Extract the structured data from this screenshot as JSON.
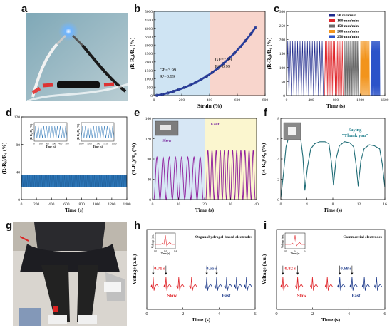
{
  "panels": {
    "a": {
      "label": "a"
    },
    "b": {
      "label": "b",
      "chart_data": {
        "type": "scatter",
        "xlabel": "Strain (%)",
        "ylabel": "(R-R₀)/R₀ (%)",
        "xlim": [
          0,
          800
        ],
        "ylim": [
          0,
          5000
        ],
        "xticks": [
          "0",
          "200",
          "400",
          "600",
          "800"
        ],
        "yticks": [
          "0",
          "500",
          "1000",
          "1500",
          "2000",
          "2500",
          "3000",
          "3500",
          "4000",
          "4500",
          "5000"
        ],
        "regions": [
          {
            "x0": 0,
            "x1": 400,
            "color": "#cfe4f3"
          },
          {
            "x0": 400,
            "x1": 800,
            "color": "#f8d5cc"
          }
        ],
        "annotations": [
          {
            "line1": "GF=3.99",
            "line2": "R²=0.99"
          },
          {
            "line1": "GF=7.79",
            "line2": "R²=0.99"
          }
        ],
        "points": [
          [
            20,
            10
          ],
          [
            60,
            70
          ],
          [
            100,
            150
          ],
          [
            140,
            250
          ],
          [
            180,
            360
          ],
          [
            220,
            480
          ],
          [
            260,
            620
          ],
          [
            300,
            780
          ],
          [
            340,
            960
          ],
          [
            380,
            1150
          ],
          [
            420,
            1370
          ],
          [
            460,
            1620
          ],
          [
            500,
            1900
          ],
          [
            540,
            2200
          ],
          [
            580,
            2520
          ],
          [
            620,
            2880
          ],
          [
            660,
            3260
          ],
          [
            700,
            3680
          ],
          [
            730,
            4050
          ]
        ]
      }
    },
    "c": {
      "label": "c",
      "chart_data": {
        "type": "line",
        "xlabel": "Time (s)",
        "ylabel": "(R-R₀)/R₀ (%)",
        "xlim": [
          0,
          1600
        ],
        "ylim": [
          0,
          300
        ],
        "xticks": [
          "0",
          "400",
          "800",
          "1200",
          "1600"
        ],
        "yticks": [
          "0",
          "50",
          "100",
          "150",
          "200",
          "250",
          "300"
        ],
        "series": [
          {
            "name": "50 mm/min",
            "color": "#1f2a8c",
            "x0": 0,
            "x1": 600,
            "cycles": 15
          },
          {
            "name": "100 mm/min",
            "color": "#e0262b",
            "x0": 620,
            "x1": 920,
            "cycles": 12
          },
          {
            "name": "150 mm/min",
            "color": "#6b6b6b",
            "x0": 940,
            "x1": 1180,
            "cycles": 14
          },
          {
            "name": "200 mm/min",
            "color": "#f2941c",
            "x0": 1200,
            "x1": 1350,
            "cycles": 12
          },
          {
            "name": "250 mm/min",
            "color": "#2b53c9",
            "x0": 1370,
            "x1": 1520,
            "cycles": 15
          }
        ],
        "peak": 195
      }
    },
    "d": {
      "label": "d",
      "chart_data": {
        "type": "line",
        "xlabel": "Time (s)",
        "ylabel": "(R-R₀)/R₀ (%)",
        "xlim": [
          0,
          1400
        ],
        "ylim": [
          0,
          120
        ],
        "xticks": [
          "0",
          "200",
          "400",
          "600",
          "800",
          "1000",
          "1200",
          "1400"
        ],
        "yticks": [
          "0",
          "40",
          "80",
          "120"
        ],
        "band": [
          18,
          36
        ],
        "color": "#2e77b8",
        "insets": [
          {
            "ylabel": "(R-R₀)/R₀ (%)",
            "xlabel": "Time (s)",
            "ticks": [
              "0",
              "100",
              "200",
              "300",
              "400",
              "500"
            ]
          },
          {
            "ylabel": "(R-R₀)/R₀ (%)",
            "xlabel": "Time (s)",
            "ticks": [
              "1000",
              "1050",
              "1100",
              "1150",
              "1200"
            ]
          }
        ]
      }
    },
    "e": {
      "label": "e",
      "chart_data": {
        "type": "line",
        "xlabel": "Time (s)",
        "ylabel": "(R-R₀)/R₀ (%)",
        "xlim": [
          0,
          40
        ],
        "ylim": [
          0,
          160
        ],
        "xticks": [
          "0",
          "10",
          "20",
          "30",
          "40"
        ],
        "yticks": [
          "0",
          "40",
          "80",
          "120",
          "160"
        ],
        "color": "#8e1b9c",
        "regions": [
          {
            "x0": 0,
            "x1": 20,
            "color": "#d7e7f5",
            "label": "Slow"
          },
          {
            "x0": 20,
            "x1": 40,
            "color": "#fbf6cf",
            "label": "Fast"
          }
        ],
        "slow": {
          "x0": 0.5,
          "x1": 19.5,
          "cycles": 8,
          "peak": 84
        },
        "fast": {
          "x0": 20.5,
          "x1": 39.5,
          "cycles": 12,
          "peak": 97
        }
      }
    },
    "f": {
      "label": "f",
      "chart_data": {
        "type": "line",
        "xlabel": "Time (s)",
        "ylabel": "(R-R₀)/R₀ (%)",
        "xlim": [
          0,
          16
        ],
        "ylim": [
          0,
          8
        ],
        "xticks": [
          "0",
          "4",
          "8",
          "12",
          "16"
        ],
        "yticks": [
          "0",
          "2",
          "4",
          "6",
          "8"
        ],
        "color": "#1f6c76",
        "annotation": [
          "Saying",
          "\"Thank you\""
        ],
        "points": [
          [
            0,
            0.2
          ],
          [
            0.4,
            2.5
          ],
          [
            0.8,
            5.2
          ],
          [
            1.2,
            6.1
          ],
          [
            1.8,
            6.5
          ],
          [
            2.4,
            6.6
          ],
          [
            3.0,
            6.3
          ],
          [
            3.4,
            4.2
          ],
          [
            3.7,
            0.9
          ],
          [
            4.1,
            3.2
          ],
          [
            4.6,
            5.0
          ],
          [
            5.2,
            5.5
          ],
          [
            6.0,
            5.7
          ],
          [
            6.8,
            5.7
          ],
          [
            7.4,
            5.5
          ],
          [
            7.8,
            3.6
          ],
          [
            8.1,
            1.4
          ],
          [
            8.5,
            4.0
          ],
          [
            9.0,
            5.3
          ],
          [
            9.8,
            5.7
          ],
          [
            10.6,
            5.6
          ],
          [
            11.2,
            5.2
          ],
          [
            11.6,
            3.3
          ],
          [
            11.9,
            1.3
          ],
          [
            12.3,
            3.8
          ],
          [
            12.8,
            5.0
          ],
          [
            13.6,
            5.4
          ],
          [
            14.4,
            5.3
          ],
          [
            15.2,
            5.0
          ],
          [
            15.6,
            3.5
          ],
          [
            16,
            1.2
          ]
        ]
      }
    },
    "g": {
      "label": "g"
    },
    "h": {
      "label": "h",
      "chart_data": {
        "type": "line",
        "xlabel": "Time (s)",
        "ylabel": "Voltage (a.u.)",
        "xlim": [
          0,
          6
        ],
        "xticks": [
          "0",
          "2",
          "4",
          "6"
        ],
        "title": "Organohydrogel-based electrodes",
        "slow_label": "Slow",
        "fast_label": "Fast",
        "slow_interval": "0.71 s",
        "fast_interval": "0.55 s",
        "slow_color": "#e0262b",
        "fast_color": "#1f3c8c",
        "split": 3.2,
        "slow_beats": [
          0.35,
          1.06,
          1.77,
          2.48
        ],
        "fast_beats": [
          3.32,
          3.87,
          4.42,
          4.97,
          5.52
        ],
        "inset": {
          "xlabel": "Time (s)",
          "ylabel": "Voltage (a.u.)",
          "ticks": [
            "0.0",
            "0.2",
            "0.4"
          ]
        }
      }
    },
    "i": {
      "label": "i",
      "chart_data": {
        "type": "line",
        "xlabel": "Time (s)",
        "ylabel": "Voltage (a.u.)",
        "xlim": [
          0,
          6
        ],
        "xticks": [
          "0",
          "2",
          "4",
          "6"
        ],
        "title": "Commercial electrodes",
        "slow_label": "Slow",
        "fast_label": "Fast",
        "slow_interval": "0.82 s",
        "fast_interval": "0.68 s",
        "slow_color": "#e0262b",
        "fast_color": "#1f3c8c",
        "split": 3.3,
        "slow_beats": [
          0.35,
          1.17,
          1.99,
          2.81
        ],
        "fast_beats": [
          3.5,
          4.18,
          4.86,
          5.54
        ],
        "inset": {
          "xlabel": "Time (s)",
          "ylabel": "Voltage (a.u.)",
          "ticks": [
            "0.0",
            "0.2",
            "0.4"
          ]
        }
      }
    }
  }
}
